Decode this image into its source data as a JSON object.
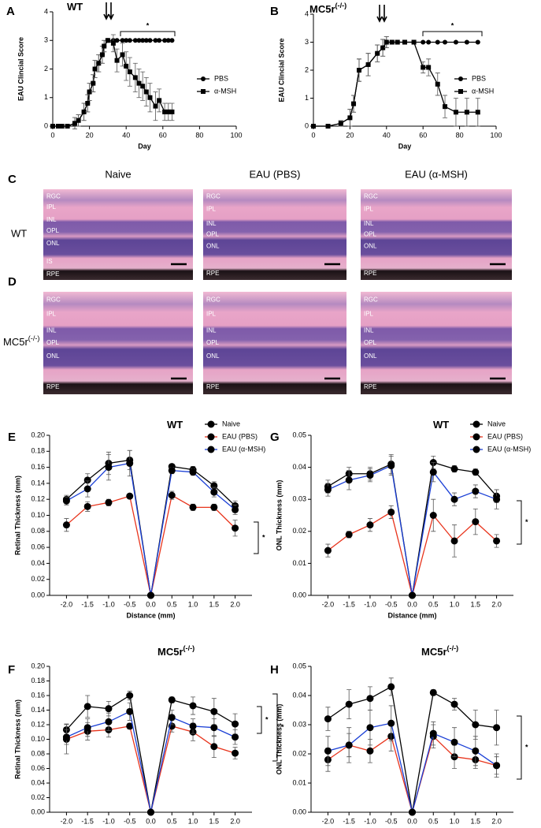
{
  "chart_data": [
    {
      "type": "line",
      "panel": "A",
      "title": "WT",
      "xlabel": "Day",
      "ylabel": "EAU Clincial Score",
      "x": [
        0,
        3,
        5,
        8,
        12,
        14,
        17,
        19,
        20,
        22,
        23,
        25,
        27,
        28,
        30,
        33,
        35,
        38,
        40,
        42,
        45,
        47,
        49,
        51,
        53,
        56,
        58,
        61,
        63,
        65
      ],
      "series": [
        {
          "name": "PBS",
          "color": "#000000",
          "marker": "circle",
          "values": [
            0,
            0,
            0,
            0,
            0.1,
            0.2,
            0.5,
            0.8,
            1.2,
            1.5,
            2,
            2.2,
            2.5,
            2.8,
            3,
            3,
            3,
            3,
            3,
            3,
            3,
            3,
            3,
            3,
            3,
            3,
            3,
            3,
            3,
            3
          ],
          "errors": [
            0,
            0,
            0,
            0,
            0.2,
            0.2,
            0.3,
            0.3,
            0.3,
            0.3,
            0.3,
            0.3,
            0.3,
            0.2,
            0,
            0,
            0,
            0,
            0,
            0,
            0,
            0,
            0,
            0,
            0,
            0,
            0,
            0,
            0,
            0
          ]
        },
        {
          "name": "α-MSH",
          "color": "#000000",
          "marker": "square",
          "values": [
            0,
            0,
            0,
            0,
            0.1,
            0.2,
            0.5,
            0.8,
            1.2,
            1.5,
            2,
            2.2,
            2.5,
            2.8,
            3,
            2.9,
            2.3,
            2.5,
            2.1,
            1.9,
            1.7,
            1.5,
            1.4,
            1.2,
            1,
            0.7,
            0.9,
            0.5,
            0.5,
            0.5
          ],
          "errors": [
            0,
            0,
            0,
            0,
            0.2,
            0.2,
            0.3,
            0.3,
            0.3,
            0.3,
            0.3,
            0.3,
            0.3,
            0.2,
            0,
            0.3,
            0.4,
            0.4,
            0.5,
            0.5,
            0.5,
            0.5,
            0.5,
            0.5,
            0.5,
            0.5,
            0.4,
            0.3,
            0.3,
            0.3
          ]
        }
      ],
      "xlim": [
        0,
        100
      ],
      "xticks": [
        0,
        20,
        40,
        60,
        80,
        100
      ],
      "ylim": [
        0,
        4
      ],
      "yticks": [
        0,
        1,
        2,
        3,
        4
      ],
      "legend": true,
      "annotations": [
        "*"
      ]
    },
    {
      "type": "line",
      "panel": "B",
      "title": "MC5r",
      "title_superscript": "(-/-)",
      "xlabel": "Day",
      "ylabel": "EAU Clincial Score",
      "x": [
        0,
        8,
        15,
        20,
        22,
        25,
        30,
        35,
        38,
        40,
        43,
        46,
        50,
        55,
        60,
        63,
        68,
        72,
        78,
        84,
        90
      ],
      "series": [
        {
          "name": "PBS",
          "color": "#000000",
          "marker": "circle",
          "values": [
            0,
            0,
            0.1,
            0.3,
            0.8,
            2,
            2.2,
            2.6,
            2.8,
            3,
            3,
            3,
            3,
            3,
            3,
            3,
            3,
            3,
            3,
            3,
            3
          ],
          "errors": [
            0,
            0,
            0.1,
            0.3,
            0.3,
            0.4,
            0.4,
            0.3,
            0.3,
            0.2,
            0,
            0,
            0,
            0,
            0,
            0,
            0,
            0,
            0,
            0,
            0
          ]
        },
        {
          "name": "α-MSH",
          "color": "#000000",
          "marker": "square",
          "values": [
            0,
            0,
            0.1,
            0.3,
            0.8,
            2,
            2.2,
            2.6,
            2.8,
            3,
            3,
            3,
            3,
            3,
            2.1,
            2.1,
            1.5,
            0.7,
            0.5,
            0.5,
            0.5
          ],
          "errors": [
            0,
            0,
            0.1,
            0.3,
            0.3,
            0.4,
            0.4,
            0.3,
            0.3,
            0.2,
            0,
            0,
            0,
            0,
            0.2,
            0.3,
            0.4,
            0.4,
            0.5,
            0.5,
            0.5
          ]
        }
      ],
      "xlim": [
        0,
        100
      ],
      "xticks": [
        0,
        20,
        40,
        60,
        80,
        100
      ],
      "ylim": [
        0,
        4
      ],
      "yticks": [
        0,
        1,
        2,
        3,
        4
      ],
      "legend": true,
      "annotations": [
        "*"
      ]
    },
    {
      "type": "line",
      "panel": "E",
      "title": "WT",
      "xlabel": "Distance (mm)",
      "ylabel": "Retinal Thickness (mm)",
      "x": [
        -2,
        -1.5,
        -1,
        -0.5,
        0,
        0.5,
        1,
        1.5,
        2
      ],
      "series": [
        {
          "name": "Naive",
          "color": "#000000",
          "marker": "circle",
          "values": [
            0.12,
            0.144,
            0.165,
            0.169,
            0,
            0.161,
            0.157,
            0.137,
            0.112
          ],
          "errors": [
            0.005,
            0.008,
            0.014,
            0.012,
            0,
            0.003,
            0.004,
            0.005,
            0.006
          ]
        },
        {
          "name": "EAU (PBS)",
          "color": "#e8341c",
          "marker": "circle",
          "values": [
            0.088,
            0.111,
            0.116,
            0.124,
            0,
            0.125,
            0.11,
            0.11,
            0.084
          ],
          "errors": [
            0.008,
            0.006,
            0.004,
            0.003,
            0,
            0.005,
            0.004,
            0.004,
            0.01
          ]
        },
        {
          "name": "EAU (α-MSH)",
          "color": "#1a3fd6",
          "marker": "circle",
          "values": [
            0.118,
            0.133,
            0.16,
            0.165,
            0,
            0.156,
            0.154,
            0.129,
            0.107
          ],
          "errors": [
            0.005,
            0.01,
            0.016,
            0.016,
            0,
            0.004,
            0.004,
            0.006,
            0.006
          ]
        }
      ],
      "xlim": [
        -2.4,
        2.4
      ],
      "xticks": [
        {
          "value": -2,
          "label": "-2.0"
        },
        -1.5,
        {
          "value": -1,
          "label": "-1.0"
        },
        -0.5,
        {
          "value": 0,
          "label": "0.0"
        },
        0.5,
        {
          "value": 1,
          "label": "1.0"
        },
        1.5,
        {
          "value": 2,
          "label": "2.0"
        }
      ],
      "ylim": [
        0,
        0.2
      ],
      "yticks": [
        {
          "value": 0,
          "label": "0.00"
        },
        {
          "value": 0.02,
          "label": "0.02"
        },
        {
          "value": 0.04,
          "label": "0.04"
        },
        {
          "value": 0.06,
          "label": "0.06"
        },
        {
          "value": 0.08,
          "label": "0.08"
        },
        {
          "value": 0.1,
          "label": "0.10"
        },
        {
          "value": 0.12,
          "label": "0.12"
        },
        {
          "value": 0.14,
          "label": "0.14"
        },
        {
          "value": 0.16,
          "label": "0.16"
        },
        {
          "value": 0.18,
          "label": "0.18"
        },
        {
          "value": 0.2,
          "label": "0.20"
        }
      ],
      "legend": true,
      "marker_color": "#000000",
      "annotations": [
        "*"
      ]
    },
    {
      "type": "line",
      "panel": "G",
      "title": "WT",
      "xlabel": "Distance (mm)",
      "ylabel": "ONL Thickness (mm)",
      "x": [
        -2,
        -1.5,
        -1,
        -0.5,
        0,
        0.5,
        1,
        1.5,
        2
      ],
      "series": [
        {
          "name": "Naive",
          "color": "#000000",
          "marker": "circle",
          "values": [
            0.034,
            0.038,
            0.038,
            0.041,
            0,
            0.0415,
            0.0395,
            0.0385,
            0.031
          ],
          "errors": [
            0.002,
            0.002,
            0.002,
            0.003,
            0,
            0.002,
            0.001,
            0.001,
            0.002
          ]
        },
        {
          "name": "EAU (PBS)",
          "color": "#e8341c",
          "marker": "circle",
          "values": [
            0.014,
            0.019,
            0.022,
            0.026,
            0,
            0.025,
            0.017,
            0.023,
            0.017
          ],
          "errors": [
            0.002,
            0.001,
            0.002,
            0.002,
            0,
            0.005,
            0.005,
            0.004,
            0.002
          ]
        },
        {
          "name": "EAU (α-MSH)",
          "color": "#1a3fd6",
          "marker": "circle",
          "values": [
            0.033,
            0.036,
            0.0375,
            0.0405,
            0,
            0.0385,
            0.03,
            0.0325,
            0.03
          ],
          "errors": [
            0.002,
            0.003,
            0.002,
            0.003,
            0,
            0.003,
            0.002,
            0.002,
            0.003
          ]
        }
      ],
      "xlim": [
        -2.4,
        2.4
      ],
      "xticks": [
        {
          "value": -2,
          "label": "-2.0"
        },
        -1.5,
        {
          "value": -1,
          "label": "-1.0"
        },
        -0.5,
        {
          "value": 0,
          "label": "0.0"
        },
        0.5,
        {
          "value": 1,
          "label": "1.0"
        },
        1.5,
        {
          "value": 2,
          "label": "2.0"
        }
      ],
      "ylim": [
        0,
        0.05
      ],
      "yticks": [
        {
          "value": 0,
          "label": "0.00"
        },
        {
          "value": 0.01,
          "label": "0.01"
        },
        {
          "value": 0.02,
          "label": "0.02"
        },
        {
          "value": 0.03,
          "label": "0.03"
        },
        {
          "value": 0.04,
          "label": "0.04"
        },
        {
          "value": 0.05,
          "label": "0.05"
        }
      ],
      "legend": true,
      "marker_color": "#000000",
      "annotations": [
        "*"
      ]
    },
    {
      "type": "line",
      "panel": "F",
      "title": "MC5r",
      "title_superscript": "(-/-)",
      "xlabel": "Distance (mm)",
      "ylabel": "Retinal Thickness (mm)",
      "x": [
        -2,
        -1.5,
        -1,
        -0.5,
        0,
        0.5,
        1,
        1.5,
        2
      ],
      "series": [
        {
          "name": "Naive",
          "color": "#000000",
          "marker": "circle",
          "values": [
            0.113,
            0.145,
            0.142,
            0.16,
            0,
            0.154,
            0.146,
            0.138,
            0.121
          ],
          "errors": [
            0.008,
            0.015,
            0.01,
            0.006,
            0,
            0.004,
            0.012,
            0.018,
            0.014
          ]
        },
        {
          "name": "EAU (PBS)",
          "color": "#e8341c",
          "marker": "circle",
          "values": [
            0.1,
            0.111,
            0.113,
            0.118,
            0,
            0.118,
            0.11,
            0.09,
            0.081
          ],
          "errors": [
            0.02,
            0.012,
            0.01,
            0.004,
            0,
            0.008,
            0.012,
            0.015,
            0.008
          ]
        },
        {
          "name": "EAU (α-MSH)",
          "color": "#1a3fd6",
          "marker": "circle",
          "values": [
            0.103,
            0.116,
            0.124,
            0.138,
            0,
            0.13,
            0.118,
            0.116,
            0.103
          ],
          "errors": [
            0.01,
            0.012,
            0.012,
            0.012,
            0,
            0.01,
            0.01,
            0.012,
            0.01
          ]
        }
      ],
      "xlim": [
        -2.4,
        2.4
      ],
      "xticks": [
        {
          "value": -2,
          "label": "-2.0"
        },
        -1.5,
        {
          "value": -1,
          "label": "-1.0"
        },
        -0.5,
        {
          "value": 0,
          "label": "0.0"
        },
        0.5,
        {
          "value": 1,
          "label": "1.0"
        },
        1.5,
        {
          "value": 2,
          "label": "2.0"
        }
      ],
      "ylim": [
        0,
        0.2
      ],
      "yticks": [
        {
          "value": 0,
          "label": "0.00"
        },
        {
          "value": 0.02,
          "label": "0.02"
        },
        {
          "value": 0.04,
          "label": "0.04"
        },
        {
          "value": 0.06,
          "label": "0.06"
        },
        {
          "value": 0.08,
          "label": "0.08"
        },
        {
          "value": 0.1,
          "label": "0.10"
        },
        {
          "value": 0.12,
          "label": "0.12"
        },
        {
          "value": 0.14,
          "label": "0.14"
        },
        {
          "value": 0.16,
          "label": "0.16"
        },
        {
          "value": 0.18,
          "label": "0.18"
        },
        {
          "value": 0.2,
          "label": "0.20"
        }
      ],
      "legend": false,
      "marker_color": "#000000",
      "annotations": [
        "*",
        "*"
      ]
    },
    {
      "type": "line",
      "panel": "H",
      "title": "MC5r",
      "title_superscript": "(-/-)",
      "xlabel": "Distance (mm)",
      "ylabel": "ONL Thickness (mm)",
      "x": [
        -2,
        -1.5,
        -1,
        -0.5,
        0,
        0.5,
        1,
        1.5,
        2
      ],
      "series": [
        {
          "name": "Naive",
          "color": "#000000",
          "marker": "circle",
          "values": [
            0.032,
            0.037,
            0.039,
            0.043,
            0,
            0.041,
            0.037,
            0.03,
            0.029
          ],
          "errors": [
            0.004,
            0.005,
            0.004,
            0.003,
            0,
            0.001,
            0.002,
            0.005,
            0.006
          ]
        },
        {
          "name": "EAU (PBS)",
          "color": "#e8341c",
          "marker": "circle",
          "values": [
            0.018,
            0.023,
            0.021,
            0.026,
            0,
            0.026,
            0.019,
            0.018,
            0.016
          ],
          "errors": [
            0.004,
            0.004,
            0.004,
            0.005,
            0,
            0.004,
            0.004,
            0.003,
            0.003
          ]
        },
        {
          "name": "EAU (α-MSH)",
          "color": "#1a3fd6",
          "marker": "circle",
          "values": [
            0.021,
            0.023,
            0.029,
            0.0305,
            0,
            0.027,
            0.024,
            0.021,
            0.016
          ],
          "errors": [
            0.005,
            0.006,
            0.006,
            0.006,
            0,
            0.004,
            0.005,
            0.005,
            0.004
          ]
        }
      ],
      "xlim": [
        -2.4,
        2.4
      ],
      "xticks": [
        {
          "value": -2,
          "label": "-2.0"
        },
        -1.5,
        {
          "value": -1,
          "label": "-1.0"
        },
        -0.5,
        {
          "value": 0,
          "label": "0.0"
        },
        0.5,
        {
          "value": 1,
          "label": "1.0"
        },
        1.5,
        {
          "value": 2,
          "label": "2.0"
        }
      ],
      "ylim": [
        0,
        0.05
      ],
      "yticks": [
        {
          "value": 0,
          "label": "0.00"
        },
        {
          "value": 0.01,
          "label": "0.01"
        },
        {
          "value": 0.02,
          "label": "0.02"
        },
        {
          "value": 0.03,
          "label": "0.03"
        },
        {
          "value": 0.04,
          "label": "0.04"
        },
        {
          "value": 0.05,
          "label": "0.05"
        }
      ],
      "legend": false,
      "marker_color": "#000000",
      "annotations": [
        "*"
      ]
    }
  ],
  "histology": {
    "panels": [
      "C",
      "D"
    ],
    "columns": [
      "Naive",
      "EAU (PBS)",
      "EAU (α-MSH)"
    ],
    "rows": [
      {
        "label": "WT"
      },
      {
        "label": "MC5r",
        "superscript": "(-/-)"
      }
    ],
    "layers": [
      [
        [
          "RGC",
          "IPL",
          "INL",
          "OPL",
          "ONL",
          "IS",
          "RPE"
        ],
        [
          "RGC",
          "IPL",
          "INL",
          "OPL",
          "ONL",
          "RPE"
        ],
        [
          "RGC",
          "IPL",
          "INL",
          "OPL",
          "ONL",
          "RPE"
        ]
      ],
      [
        [
          "RGC",
          "IPL",
          "INL",
          "OPL",
          "ONL",
          "RPE"
        ],
        [
          "RGC",
          "IPL",
          "INL",
          "OPL",
          "ONL",
          "RPE"
        ],
        [
          "RGC",
          "IPL",
          "INL",
          "OPL",
          "ONL",
          "RPE"
        ]
      ]
    ]
  }
}
